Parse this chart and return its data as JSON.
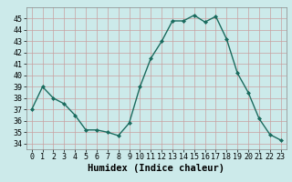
{
  "x": [
    0,
    1,
    2,
    3,
    4,
    5,
    6,
    7,
    8,
    9,
    10,
    11,
    12,
    13,
    14,
    15,
    16,
    17,
    18,
    19,
    20,
    21,
    22,
    23
  ],
  "y": [
    37.0,
    39.0,
    38.0,
    37.5,
    36.5,
    35.2,
    35.2,
    35.0,
    34.7,
    35.8,
    39.0,
    41.5,
    43.0,
    44.8,
    44.8,
    45.3,
    44.7,
    45.2,
    43.2,
    40.2,
    38.5,
    36.2,
    34.8,
    34.3
  ],
  "line_color": "#1a6b5e",
  "marker": "D",
  "marker_size": 2.0,
  "bg_color": "#cceaea",
  "grid_color": "#b0c8c8",
  "grid_color_minor": "#d4b0b0",
  "xlabel": "Humidex (Indice chaleur)",
  "ylim": [
    33.5,
    46.0
  ],
  "xlim": [
    -0.5,
    23.5
  ],
  "yticks": [
    34,
    35,
    36,
    37,
    38,
    39,
    40,
    41,
    42,
    43,
    44,
    45
  ],
  "xticks": [
    0,
    1,
    2,
    3,
    4,
    5,
    6,
    7,
    8,
    9,
    10,
    11,
    12,
    13,
    14,
    15,
    16,
    17,
    18,
    19,
    20,
    21,
    22,
    23
  ],
  "xlabel_fontsize": 7.5,
  "tick_fontsize": 6.0,
  "line_width": 1.0
}
